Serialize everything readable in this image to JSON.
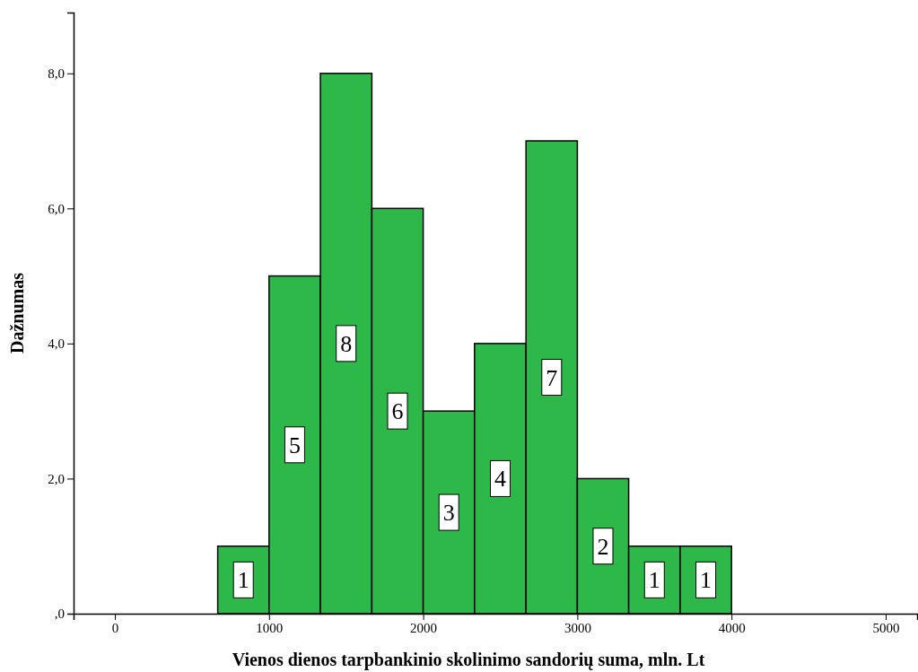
{
  "chart_data": {
    "type": "histogram",
    "xlabel": "Vienos dienos tarpbankinio skolinimo sandorių suma, mln. Lt",
    "ylabel": "Dažnumas",
    "bins": [
      667,
      1000,
      1333,
      1667,
      2000,
      2333,
      2667,
      3000,
      3333,
      3667,
      4000
    ],
    "values": [
      1,
      5,
      8,
      6,
      3,
      4,
      7,
      2,
      1,
      1
    ],
    "color": "#2eb84a",
    "data_labels": true,
    "xlim": [
      -268,
      5204
    ],
    "xticks": [
      0,
      1000,
      2000,
      3000,
      4000,
      5000
    ],
    "ylim": [
      0,
      8.9
    ],
    "yticks": [
      {
        "value": 0,
        "label": ",0"
      },
      {
        "value": 2,
        "label": "2,0"
      },
      {
        "value": 4,
        "label": "4,0"
      },
      {
        "value": 6,
        "label": "6,0"
      },
      {
        "value": 8,
        "label": "8,0"
      }
    ]
  }
}
